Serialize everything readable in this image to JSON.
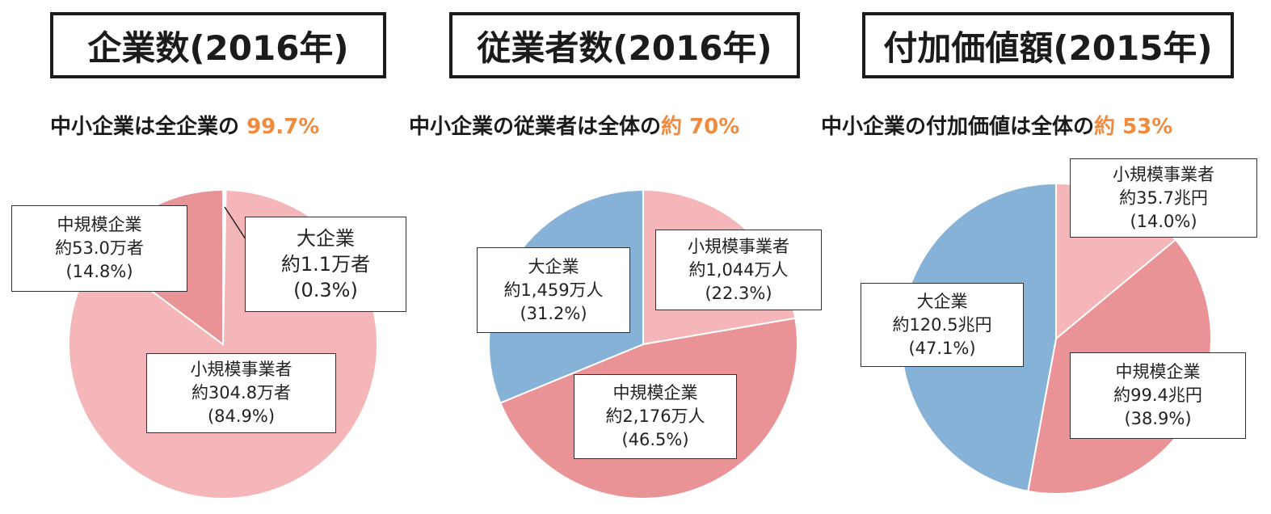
{
  "chart_data": [
    {
      "type": "pie",
      "title": "企業数(2016年)",
      "subtitle_text": "中小企業は全企業の ",
      "subtitle_highlight": "99.7%",
      "slices": [
        {
          "name": "大企業",
          "value_text": "約1.1万者",
          "pct_text": "(0.3%)",
          "value": 0.3,
          "color": "#ffffff"
        },
        {
          "name": "小規模事業者",
          "value_text": "約304.8万者",
          "pct_text": "(84.9%)",
          "value": 84.9,
          "color": "#f4b6b8"
        },
        {
          "name": "中規模企業",
          "value_text": "約53.0万者",
          "pct_text": "(14.8%)",
          "value": 14.8,
          "color": "#e99397"
        }
      ]
    },
    {
      "type": "pie",
      "title": "従業者数(2016年)",
      "subtitle_text": "中小企業の従業者は全体の",
      "subtitle_highlight": "約 70%",
      "slices": [
        {
          "name": "小規模事業者",
          "value_text": "約1,044万人",
          "pct_text": "(22.3%)",
          "value": 22.3,
          "color": "#f4b6b8"
        },
        {
          "name": "中規模企業",
          "value_text": "約2,176万人",
          "pct_text": "(46.5%)",
          "value": 46.5,
          "color": "#e99397"
        },
        {
          "name": "大企業",
          "value_text": "約1,459万人",
          "pct_text": "(31.2%)",
          "value": 31.2,
          "color": "#86b2d8"
        }
      ]
    },
    {
      "type": "pie",
      "title": "付加価値額(2015年)",
      "subtitle_text": "中小企業の付加価値は全体の",
      "subtitle_highlight": "約 53%",
      "slices": [
        {
          "name": "小規模事業者",
          "value_text": "約35.7兆円",
          "pct_text": "(14.0%)",
          "value": 14.0,
          "color": "#f4b6b8"
        },
        {
          "name": "中規模企業",
          "value_text": "約99.4兆円",
          "pct_text": "(38.9%)",
          "value": 38.9,
          "color": "#e99397"
        },
        {
          "name": "大企業",
          "value_text": "約120.5兆円",
          "pct_text": "(47.1%)",
          "value": 47.1,
          "color": "#86b2d8"
        }
      ]
    }
  ]
}
